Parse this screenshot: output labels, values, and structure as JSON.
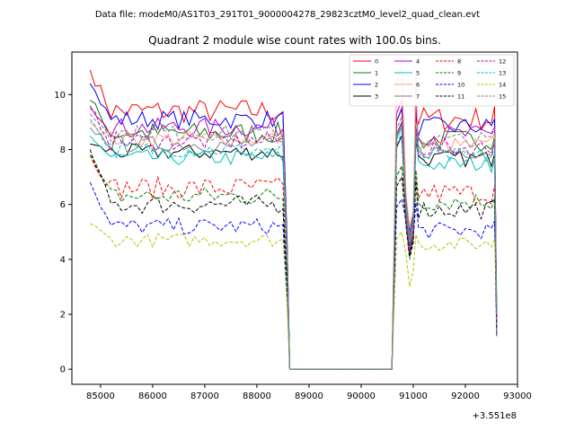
{
  "suptitle": "Data file: modeM0/AS1T03_291T01_9000004278_29823cztM0_level2_quad_clean.evt",
  "chart_data": {
    "type": "line",
    "title": "Quadrant 2 module wise count rates with 100.0s bins.",
    "xlabel": "",
    "ylabel": "",
    "x_offset_label": "+3.551e8",
    "x_offset": 355100000,
    "xlim": [
      84450,
      93000
    ],
    "ylim": [
      -0.55,
      11.55
    ],
    "xticks": [
      85000,
      86000,
      87000,
      88000,
      89000,
      90000,
      91000,
      92000,
      93000
    ],
    "xtick_labels": [
      "85000",
      "86000",
      "87000",
      "88000",
      "89000",
      "90000",
      "91000",
      "92000",
      "93000"
    ],
    "yticks": [
      0,
      2,
      4,
      6,
      8,
      10
    ],
    "ytick_labels": [
      "0",
      "2",
      "4",
      "6",
      "8",
      "10"
    ],
    "grid": false,
    "legend_position": "top-right",
    "legend_columns": 4,
    "segments": [
      {
        "x_start": 84800,
        "x_end": 88600,
        "step": 100
      },
      {
        "x_start": 90600,
        "x_end": 92600,
        "step": 100
      }
    ],
    "gap": {
      "x_start": 88600,
      "x_end": 90600,
      "value": 0
    },
    "series": [
      {
        "name": "0",
        "color": "#ff0000",
        "dash": "solid",
        "level": 9.4,
        "first": 10.9,
        "amp": 0.45,
        "dip": 4.2,
        "peak": 9.5
      },
      {
        "name": "1",
        "color": "#008000",
        "dash": "solid",
        "level": 8.6,
        "first": 9.8,
        "amp": 0.4,
        "dip": 4.5,
        "peak": 9.0
      },
      {
        "name": "2",
        "color": "#0000ff",
        "dash": "solid",
        "level": 9.1,
        "first": 10.4,
        "amp": 0.35,
        "dip": 5.0,
        "peak": 9.5
      },
      {
        "name": "3",
        "color": "#000000",
        "dash": "solid",
        "level": 7.9,
        "first": 8.2,
        "amp": 0.3,
        "dip": 4.3,
        "peak": 8.5
      },
      {
        "name": "4",
        "color": "#bf00bf",
        "dash": "solid",
        "level": 8.8,
        "first": 9.6,
        "amp": 0.35,
        "dip": 4.8,
        "peak": 9.8
      },
      {
        "name": "5",
        "color": "#00bfbf",
        "dash": "solid",
        "level": 7.7,
        "first": 8.5,
        "amp": 0.3,
        "dip": 4.4,
        "peak": 8.8
      },
      {
        "name": "6",
        "color": "#ffa07a",
        "dash": "solid",
        "level": 8.4,
        "first": 9.0,
        "amp": 0.3,
        "dip": 5.2,
        "peak": 11.0
      },
      {
        "name": "7",
        "color": "#808080",
        "dash": "solid",
        "level": 8.2,
        "first": 8.8,
        "amp": 0.3,
        "dip": 4.9,
        "peak": 8.9
      },
      {
        "name": "8",
        "color": "#ff0000",
        "dash": "dashed",
        "level": 6.6,
        "first": 7.8,
        "amp": 0.4,
        "dip": 4.5,
        "peak": 7.4
      },
      {
        "name": "9",
        "color": "#008000",
        "dash": "dashed",
        "level": 6.3,
        "first": 7.8,
        "amp": 0.35,
        "dip": 4.0,
        "peak": 7.4
      },
      {
        "name": "10",
        "color": "#0000ff",
        "dash": "dashed",
        "level": 5.2,
        "first": 6.8,
        "amp": 0.3,
        "dip": 4.2,
        "peak": 6.2
      },
      {
        "name": "11",
        "color": "#000000",
        "dash": "dashed",
        "level": 6.0,
        "first": 8.0,
        "amp": 0.35,
        "dip": 4.1,
        "peak": 7.0
      },
      {
        "name": "12",
        "color": "#bf00bf",
        "dash": "dashed",
        "level": 8.3,
        "first": 9.5,
        "amp": 0.35,
        "dip": 4.3,
        "peak": 9.0
      },
      {
        "name": "13",
        "color": "#00bfbf",
        "dash": "dashed",
        "level": 8.0,
        "first": 9.1,
        "amp": 0.3,
        "dip": 4.6,
        "peak": 8.6
      },
      {
        "name": "14",
        "color": "#bfbf00",
        "dash": "dashed",
        "level": 4.7,
        "first": 5.3,
        "amp": 0.25,
        "dip": 3.0,
        "peak": 5.0
      },
      {
        "name": "15",
        "color": "#808080",
        "dash": "dashed",
        "level": 8.6,
        "first": 9.3,
        "amp": 0.3,
        "dip": 4.7,
        "peak": 9.2
      }
    ]
  }
}
